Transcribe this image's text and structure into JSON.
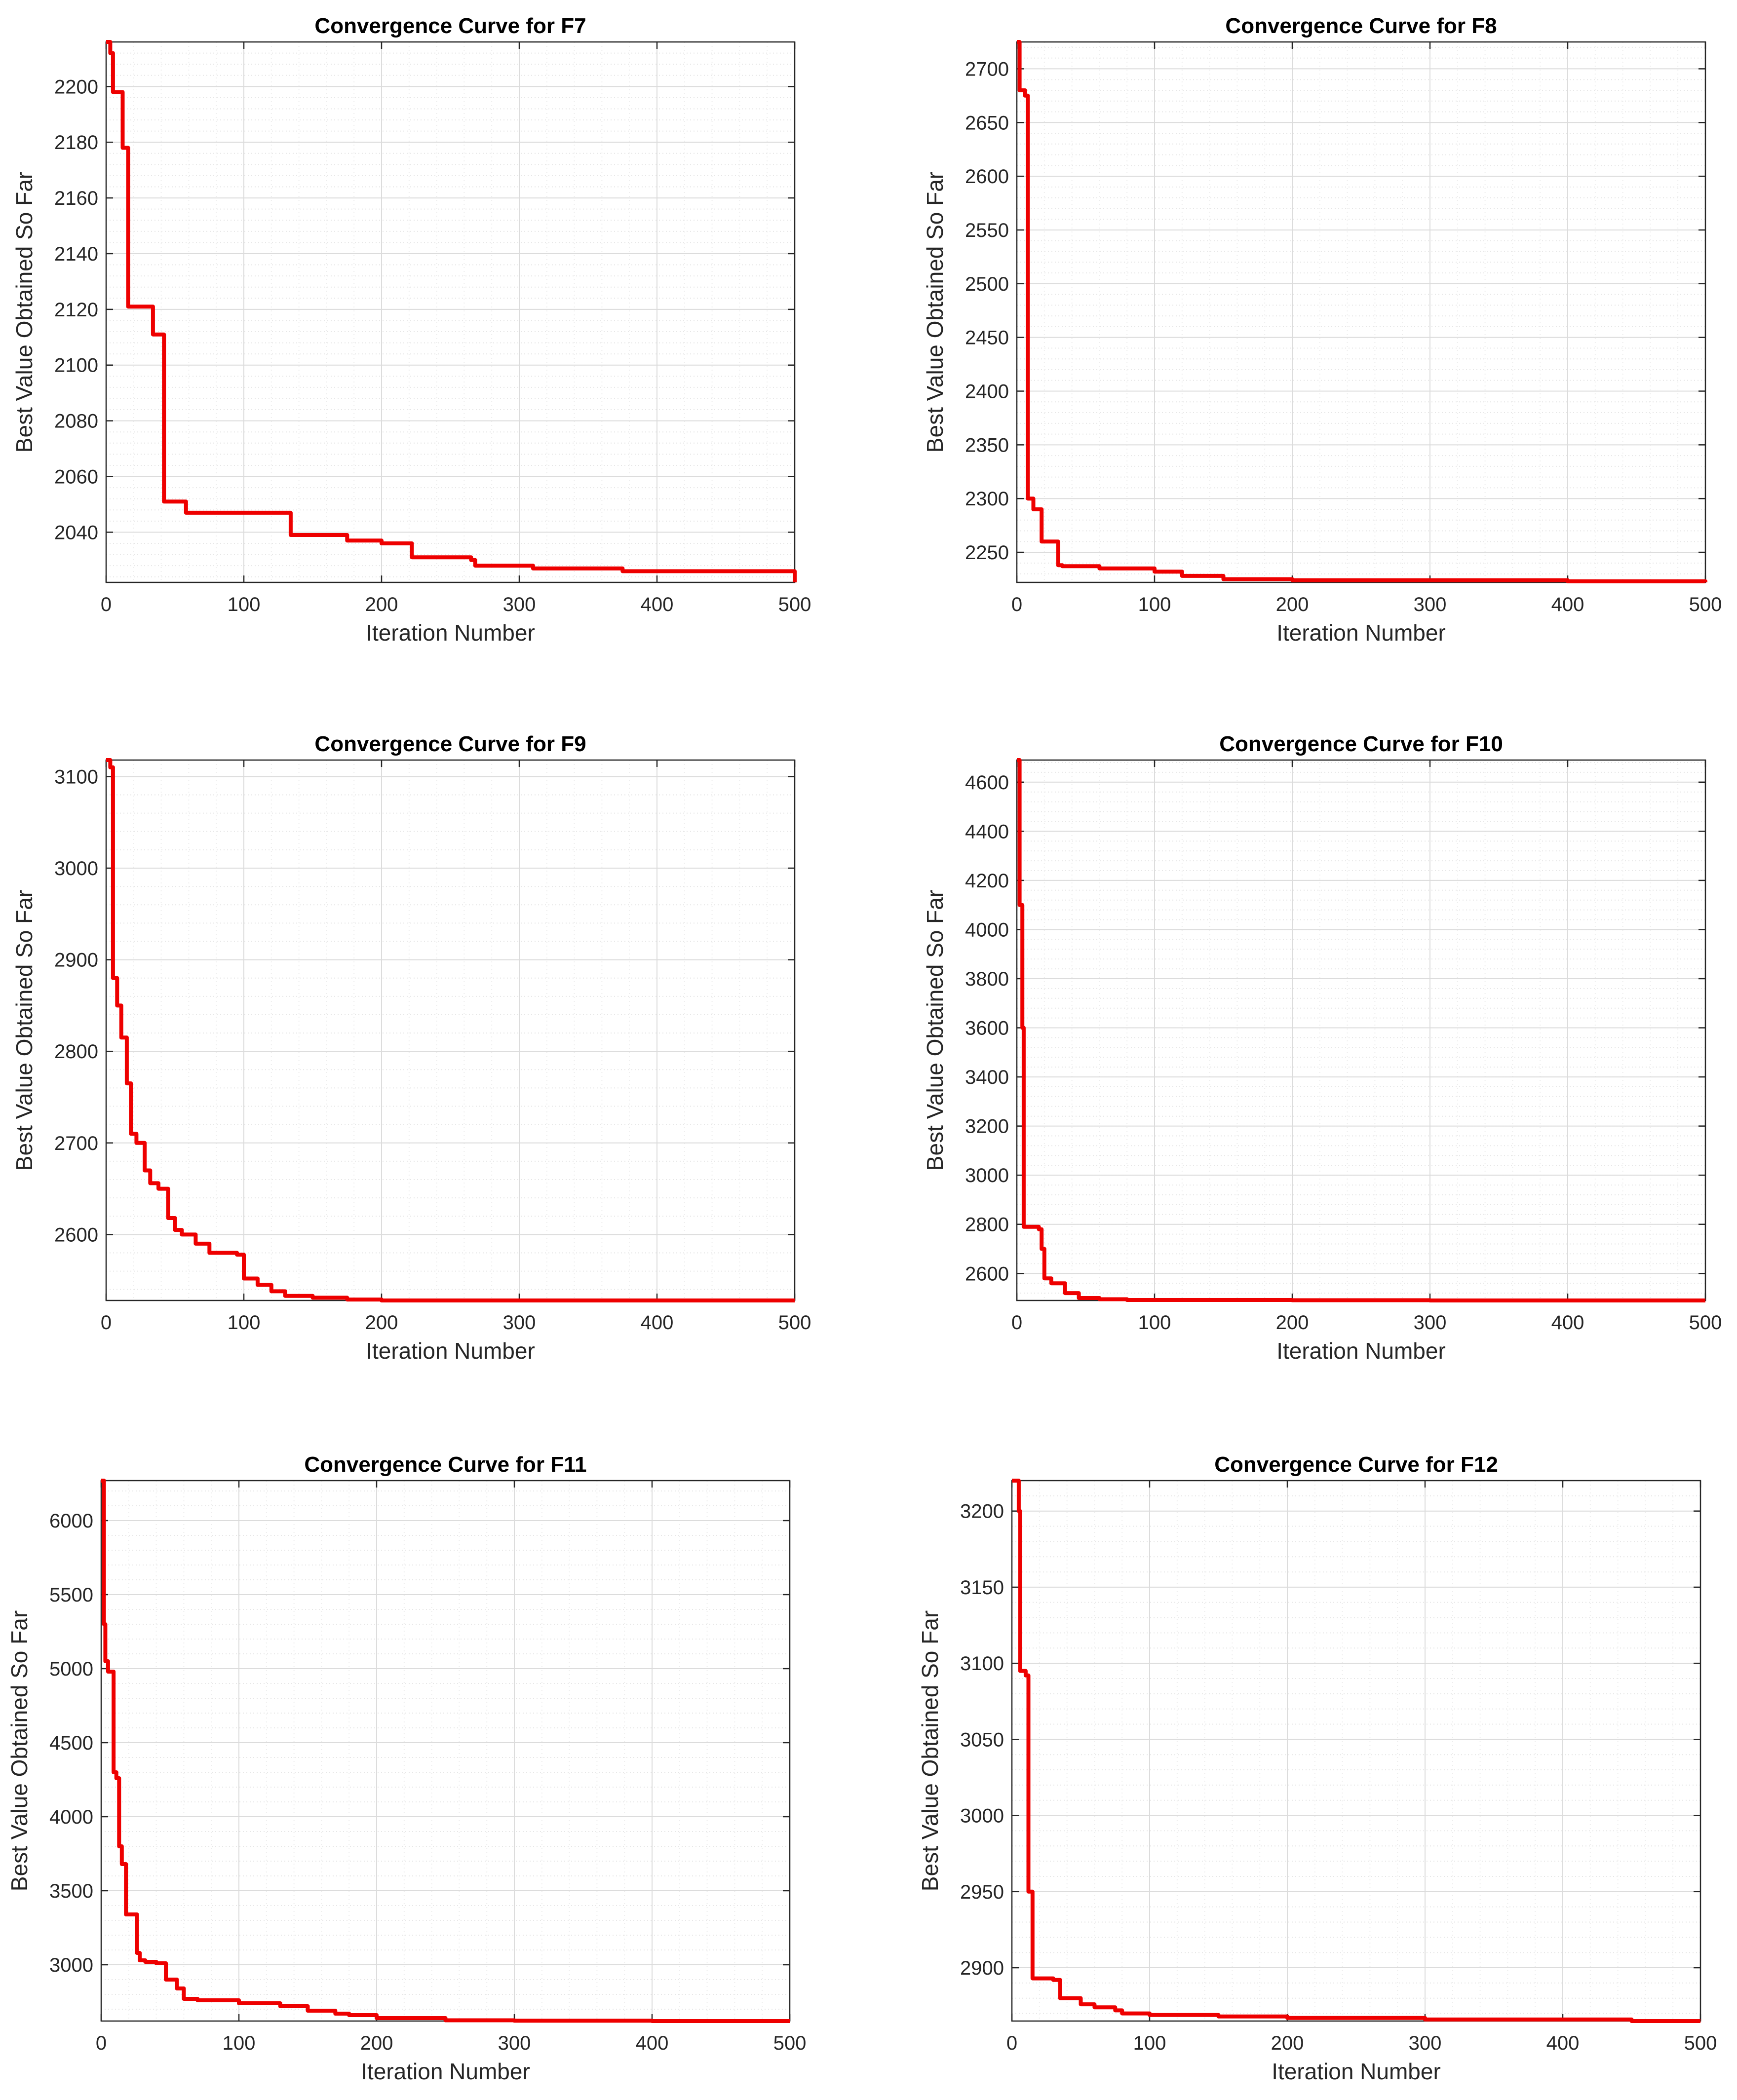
{
  "chart_data": [
    {
      "type": "line",
      "title": "Convergence Curve for F7",
      "xlabel": "Iteration Number",
      "ylabel": "Best Value Obtained So Far",
      "xlim": [
        0,
        500
      ],
      "ylim": [
        2022,
        2216
      ],
      "xticks": [
        0,
        100,
        200,
        300,
        400,
        500
      ],
      "yticks": [
        2040,
        2060,
        2080,
        2100,
        2120,
        2140,
        2160,
        2180,
        2200
      ],
      "grid": true,
      "line_color": "#ee0000",
      "series": [
        {
          "name": "Best Value Obtained So Far",
          "x": [
            0,
            3,
            5,
            12,
            16,
            18,
            34,
            42,
            44,
            58,
            133,
            134,
            175,
            200,
            222,
            265,
            268,
            310,
            375,
            500
          ],
          "y": [
            2216,
            2212,
            2198,
            2178,
            2121,
            2121,
            2111,
            2051,
            2051,
            2047,
            2047,
            2039,
            2037,
            2036,
            2031,
            2030,
            2028,
            2027,
            2026,
            2022
          ]
        }
      ]
    },
    {
      "type": "line",
      "title": "Convergence Curve for F8",
      "xlabel": "Iteration Number",
      "ylabel": "Best Value Obtained So Far",
      "xlim": [
        0,
        500
      ],
      "ylim": [
        2222,
        2725
      ],
      "xticks": [
        0,
        100,
        200,
        300,
        400,
        500
      ],
      "yticks": [
        2250,
        2300,
        2350,
        2400,
        2450,
        2500,
        2550,
        2600,
        2650,
        2700
      ],
      "grid": true,
      "line_color": "#ee0000",
      "series": [
        {
          "name": "Best Value Obtained So Far",
          "x": [
            0,
            2,
            6,
            8,
            12,
            18,
            30,
            33,
            60,
            100,
            120,
            150,
            200,
            300,
            400,
            450,
            500
          ],
          "y": [
            2725,
            2680,
            2675,
            2300,
            2290,
            2260,
            2238,
            2237,
            2235,
            2232,
            2228,
            2225,
            2224,
            2224,
            2223,
            2223,
            2222
          ]
        }
      ]
    },
    {
      "type": "line",
      "title": "Convergence Curve for F9",
      "xlabel": "Iteration Number",
      "ylabel": "Best Value Obtained So Far",
      "xlim": [
        0,
        500
      ],
      "ylim": [
        2528,
        3118
      ],
      "xticks": [
        0,
        100,
        200,
        300,
        400,
        500
      ],
      "yticks": [
        2600,
        2700,
        2800,
        2900,
        3000,
        3100
      ],
      "grid": true,
      "line_color": "#ee0000",
      "series": [
        {
          "name": "Best Value Obtained So Far",
          "x": [
            0,
            3,
            5,
            8,
            11,
            15,
            18,
            22,
            28,
            32,
            38,
            45,
            50,
            55,
            65,
            75,
            95,
            100,
            110,
            120,
            130,
            150,
            175,
            200,
            250,
            300,
            400,
            500
          ],
          "y": [
            3118,
            3110,
            2880,
            2850,
            2815,
            2765,
            2710,
            2700,
            2670,
            2656,
            2650,
            2618,
            2605,
            2600,
            2590,
            2580,
            2578,
            2552,
            2545,
            2538,
            2533,
            2531,
            2529,
            2528,
            2528,
            2528,
            2528,
            2528
          ]
        }
      ]
    },
    {
      "type": "line",
      "title": "Convergence Curve for F10",
      "xlabel": "Iteration Number",
      "ylabel": "Best Value Obtained So Far",
      "xlim": [
        0,
        500
      ],
      "ylim": [
        2490,
        4690
      ],
      "xticks": [
        0,
        100,
        200,
        300,
        400,
        500
      ],
      "yticks": [
        2600,
        2800,
        3000,
        3200,
        3400,
        3600,
        3800,
        4000,
        4200,
        4400,
        4600
      ],
      "grid": true,
      "line_color": "#ee0000",
      "series": [
        {
          "name": "Best Value Obtained So Far",
          "x": [
            0,
            2,
            4,
            5,
            16,
            18,
            20,
            25,
            35,
            45,
            60,
            80,
            100,
            200,
            300,
            500
          ],
          "y": [
            4690,
            4100,
            3600,
            2790,
            2780,
            2700,
            2580,
            2560,
            2520,
            2500,
            2495,
            2492,
            2492,
            2491,
            2490,
            2490
          ]
        }
      ]
    },
    {
      "type": "line",
      "title": "Convergence Curve for F11",
      "xlabel": "Iteration Number",
      "ylabel": "Best Value Obtained So Far",
      "xlim": [
        0,
        500
      ],
      "ylim": [
        2620,
        6270
      ],
      "xticks": [
        0,
        100,
        200,
        300,
        400,
        500
      ],
      "yticks": [
        3000,
        3500,
        4000,
        4500,
        5000,
        5500,
        6000
      ],
      "grid": true,
      "line_color": "#ee0000",
      "series": [
        {
          "name": "Best Value Obtained So Far",
          "x": [
            0,
            2,
            3,
            5,
            7,
            9,
            11,
            13,
            15,
            18,
            22,
            26,
            28,
            32,
            40,
            47,
            55,
            60,
            70,
            100,
            130,
            150,
            170,
            180,
            200,
            250,
            300,
            400,
            500
          ],
          "y": [
            6270,
            5300,
            5050,
            4980,
            4980,
            4300,
            4260,
            3800,
            3680,
            3340,
            3340,
            3080,
            3030,
            3020,
            3010,
            2900,
            2840,
            2770,
            2760,
            2740,
            2720,
            2690,
            2670,
            2660,
            2640,
            2625,
            2622,
            2620,
            2620
          ]
        }
      ]
    },
    {
      "type": "line",
      "title": "Convergence Curve for F12",
      "xlabel": "Iteration Number",
      "ylabel": "Best Value Obtained So Far",
      "xlim": [
        0,
        500
      ],
      "ylim": [
        2865,
        3220
      ],
      "xticks": [
        0,
        100,
        200,
        300,
        400,
        500
      ],
      "yticks": [
        2900,
        2950,
        3000,
        3050,
        3100,
        3150,
        3200
      ],
      "grid": true,
      "line_color": "#ee0000",
      "series": [
        {
          "name": "Best Value Obtained So Far",
          "x": [
            0,
            5,
            6,
            10,
            12,
            15,
            30,
            35,
            50,
            60,
            75,
            80,
            100,
            150,
            200,
            300,
            400,
            450,
            500
          ],
          "y": [
            3220,
            3200,
            3095,
            3092,
            2950,
            2893,
            2892,
            2880,
            2876,
            2874,
            2872,
            2870,
            2869,
            2868,
            2867,
            2866,
            2866,
            2865,
            2865
          ]
        }
      ]
    }
  ]
}
